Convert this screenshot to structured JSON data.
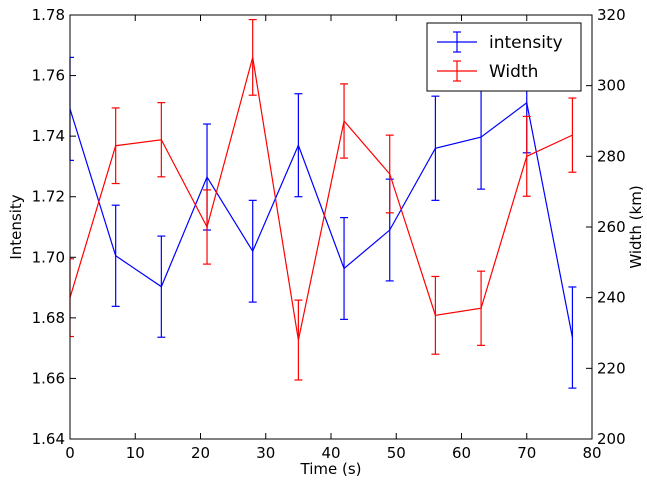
{
  "chart_data": {
    "type": "line",
    "xlabel": "Time (s)",
    "ylabel": "Intensity",
    "ylabel_right": "Width (km)",
    "xlim": [
      0,
      80
    ],
    "ylim": [
      1.64,
      1.78
    ],
    "ylim_right": [
      200,
      320
    ],
    "x_ticks": [
      0,
      10,
      20,
      30,
      40,
      50,
      60,
      70,
      80
    ],
    "x_tick_labels": [
      "0",
      "10",
      "20",
      "30",
      "40",
      "50",
      "60",
      "70",
      "80"
    ],
    "y_ticks": [
      1.64,
      1.66,
      1.68,
      1.7,
      1.72,
      1.74,
      1.76,
      1.78
    ],
    "y_tick_labels": [
      "1.64",
      "1.66",
      "1.68",
      "1.70",
      "1.72",
      "1.74",
      "1.76",
      "1.78"
    ],
    "y_right_ticks": [
      200,
      220,
      240,
      260,
      280,
      300,
      320
    ],
    "y_right_tick_labels": [
      "200",
      "220",
      "240",
      "260",
      "280",
      "300",
      "320"
    ],
    "grid": false,
    "legend_position": "top-right",
    "x": [
      0,
      7,
      14,
      21,
      28,
      35,
      42,
      49,
      56,
      63,
      70,
      77
    ],
    "series": [
      {
        "name": "intensity",
        "axis": "left",
        "color": "#0000ff",
        "values": [
          1.749,
          1.7005,
          1.6903,
          1.7265,
          1.702,
          1.737,
          1.6963,
          1.709,
          1.736,
          1.7397,
          1.751,
          1.6735
        ],
        "error": [
          0.017,
          0.0167,
          0.0167,
          0.0175,
          0.0168,
          0.017,
          0.0168,
          0.0168,
          0.0172,
          0.0172,
          0.0165,
          0.0167
        ]
      },
      {
        "name": "Width",
        "axis": "right",
        "color": "#ff0000",
        "values": [
          240,
          283,
          284.7,
          260,
          308,
          228,
          290,
          275,
          235,
          237,
          280,
          286
        ],
        "error": [
          11,
          10.7,
          10.5,
          10.5,
          10.7,
          11.3,
          10.5,
          11,
          11,
          10.5,
          11.3,
          10.5
        ]
      }
    ]
  }
}
